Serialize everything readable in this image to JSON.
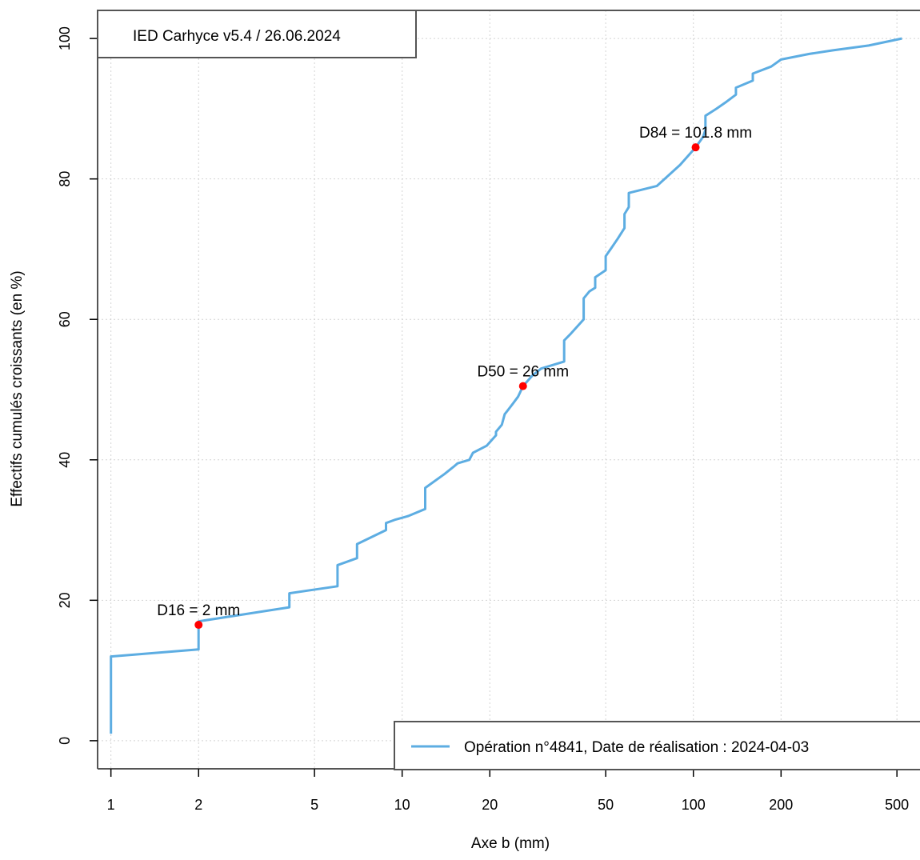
{
  "chart_data": {
    "type": "line",
    "title": "IED Carhyce v5.4 / 26.06.2024",
    "xlabel": "Axe b (mm)",
    "ylabel": "Effectifs cumulés croissants (en %)",
    "x_scale": "log",
    "xlim": [
      0.9,
      600
    ],
    "ylim": [
      -4,
      104
    ],
    "x_ticks": [
      1,
      2,
      5,
      10,
      20,
      50,
      100,
      200,
      500
    ],
    "x_tick_labels": [
      "1",
      "2",
      "5",
      "10",
      "20",
      "50",
      "100",
      "200",
      "500"
    ],
    "y_ticks": [
      0,
      20,
      40,
      60,
      80,
      100
    ],
    "y_tick_labels": [
      "0",
      "20",
      "40",
      "60",
      "80",
      "100"
    ],
    "grid": true,
    "legend_position": "bottom-right",
    "series": [
      {
        "name": "Opération n°4841, Date de réalisation : 2024-04-03",
        "color": "#5DADE2",
        "x": [
          1,
          1,
          2,
          2,
          4.1,
          4.1,
          6,
          6,
          7,
          7,
          8.8,
          8.8,
          9.5,
          10.5,
          12,
          12,
          14,
          15,
          15.5,
          17,
          17.5,
          19.5,
          20.5,
          21,
          21,
          22,
          22.5,
          23,
          24,
          25,
          26,
          28,
          30,
          36,
          36,
          38,
          42,
          42,
          44,
          46,
          46,
          50,
          50,
          52,
          55,
          58,
          58,
          60,
          60,
          75,
          90,
          101.8,
          108,
          110,
          110,
          120,
          130,
          140,
          140,
          160,
          160,
          185,
          200,
          250,
          300,
          400,
          520
        ],
        "y": [
          1,
          12,
          13,
          17,
          19,
          21,
          22,
          25,
          26,
          28,
          30,
          31,
          31.5,
          32,
          33,
          36,
          38,
          39,
          39.5,
          40,
          41,
          42,
          43,
          43.5,
          44,
          45,
          46.5,
          47,
          48,
          49,
          50.5,
          52,
          53,
          54,
          57,
          58,
          60,
          63,
          64,
          64.5,
          66,
          67,
          69,
          70,
          71.5,
          73,
          75,
          76,
          78,
          79,
          82,
          84.5,
          86,
          87,
          89,
          90,
          91,
          92,
          93,
          94,
          95,
          96,
          97,
          97.8,
          98.3,
          99,
          100
        ]
      }
    ],
    "markers": [
      {
        "label": "D16 = 2 mm",
        "x": 2,
        "y": 16.5,
        "color": "#FF0000"
      },
      {
        "label": "D50 = 26 mm",
        "x": 26,
        "y": 50.5,
        "color": "#FF0000"
      },
      {
        "label": "D84 = 101.8 mm",
        "x": 101.8,
        "y": 84.5,
        "color": "#FF0000"
      }
    ]
  }
}
